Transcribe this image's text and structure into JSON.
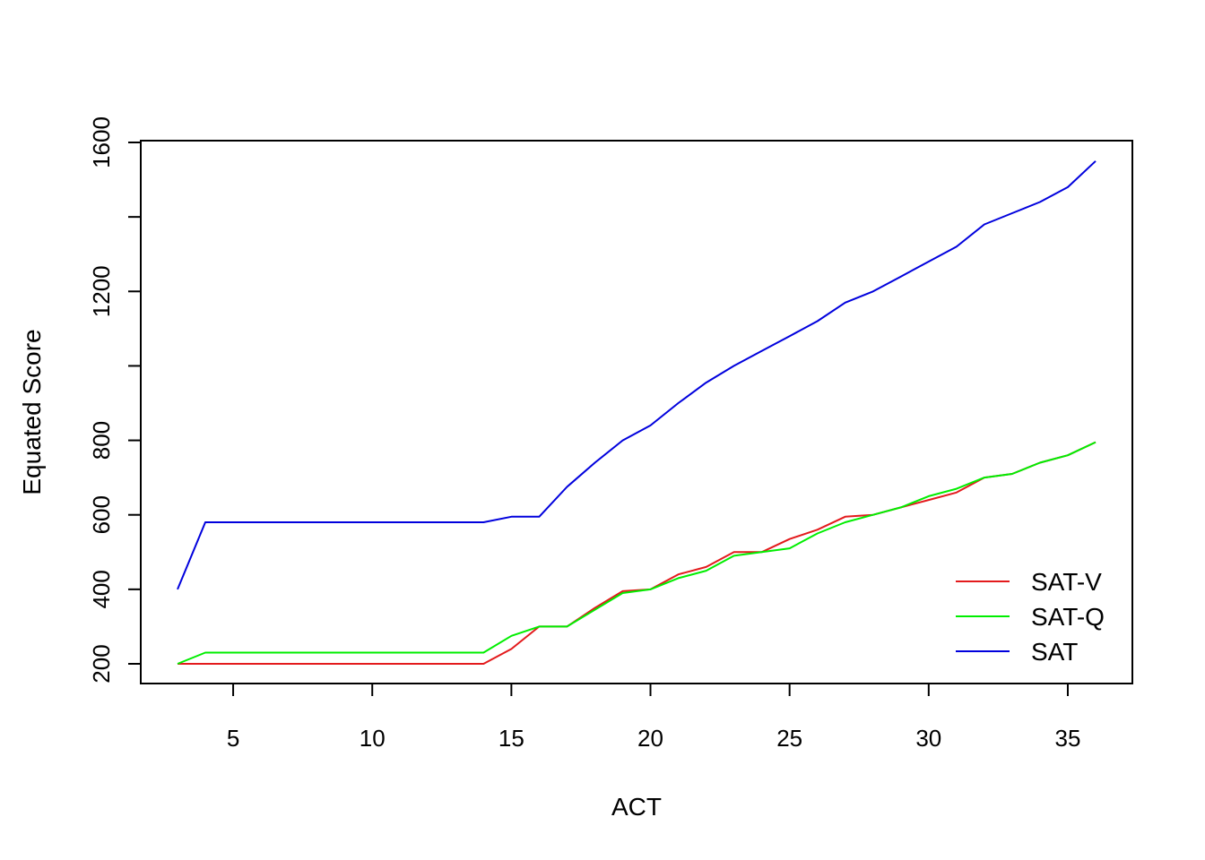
{
  "chart_data": {
    "type": "line",
    "title": "",
    "xlabel": "ACT",
    "ylabel": "Equated Score",
    "xlim": [
      3,
      36
    ],
    "ylim": [
      200,
      1600
    ],
    "xticks": [
      5,
      10,
      15,
      20,
      25,
      30,
      35
    ],
    "yticks": [
      200,
      400,
      600,
      800,
      1000,
      1200,
      1400,
      1600
    ],
    "ytick_labels": [
      "200",
      "400",
      "600",
      "800",
      "",
      "1200",
      "",
      "1600"
    ],
    "grid": false,
    "legend_position": "bottom-right",
    "x": [
      3,
      4,
      5,
      6,
      7,
      8,
      9,
      10,
      11,
      12,
      13,
      14,
      15,
      16,
      17,
      18,
      19,
      20,
      21,
      22,
      23,
      24,
      25,
      26,
      27,
      28,
      29,
      30,
      31,
      32,
      33,
      34,
      35,
      36
    ],
    "series": [
      {
        "name": "SAT-V",
        "color": "#e31a1c",
        "values": [
          200,
          200,
          200,
          200,
          200,
          200,
          200,
          200,
          200,
          200,
          200,
          200,
          240,
          300,
          300,
          350,
          395,
          400,
          440,
          460,
          500,
          500,
          535,
          560,
          595,
          600,
          620,
          640,
          660,
          700,
          710,
          740,
          760,
          795
        ]
      },
      {
        "name": "SAT-Q",
        "color": "#00ee00",
        "values": [
          200,
          230,
          230,
          230,
          230,
          230,
          230,
          230,
          230,
          230,
          230,
          230,
          275,
          300,
          300,
          345,
          390,
          400,
          430,
          450,
          490,
          500,
          510,
          550,
          580,
          600,
          620,
          650,
          670,
          700,
          710,
          740,
          760,
          795
        ]
      },
      {
        "name": "SAT",
        "color": "#0000dd",
        "values": [
          400,
          580,
          580,
          580,
          580,
          580,
          580,
          580,
          580,
          580,
          580,
          580,
          595,
          595,
          675,
          740,
          800,
          840,
          900,
          955,
          1000,
          1040,
          1080,
          1120,
          1170,
          1200,
          1240,
          1280,
          1320,
          1380,
          1410,
          1440,
          1480,
          1550
        ]
      }
    ]
  }
}
